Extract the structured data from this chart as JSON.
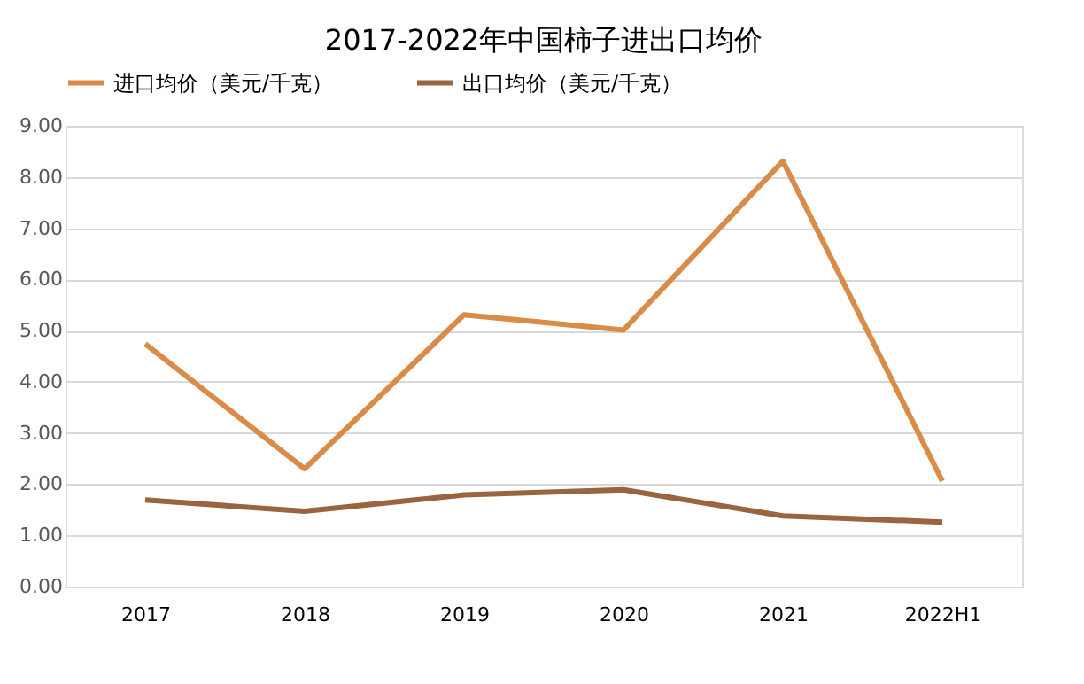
{
  "chart_data": {
    "type": "line",
    "title": "2017-2022年中国柿子进出口均价",
    "categories": [
      "2017",
      "2018",
      "2019",
      "2020",
      "2021",
      "2022H1"
    ],
    "series": [
      {
        "name": "进口均价（美元/千克）",
        "color": "#d98b4a",
        "values": [
          4.74,
          2.3,
          5.31,
          5.01,
          8.31,
          2.06
        ]
      },
      {
        "name": "出口均价（美元/千克）",
        "color": "#9a6440",
        "values": [
          1.69,
          1.47,
          1.79,
          1.89,
          1.38,
          1.26
        ]
      }
    ],
    "ylim": [
      0,
      9
    ],
    "yticks": [
      {
        "value": 0,
        "label": "0.00"
      },
      {
        "value": 1,
        "label": "1.00"
      },
      {
        "value": 2,
        "label": "2.00"
      },
      {
        "value": 3,
        "label": "3.00"
      },
      {
        "value": 4,
        "label": "4.00"
      },
      {
        "value": 5,
        "label": "5.00"
      },
      {
        "value": 6,
        "label": "6.00"
      },
      {
        "value": 7,
        "label": "7.00"
      },
      {
        "value": 8,
        "label": "8.00"
      },
      {
        "value": 9,
        "label": "9.00"
      }
    ],
    "grid": "y",
    "legend": "top",
    "marker": "none",
    "line_style": "solid"
  }
}
